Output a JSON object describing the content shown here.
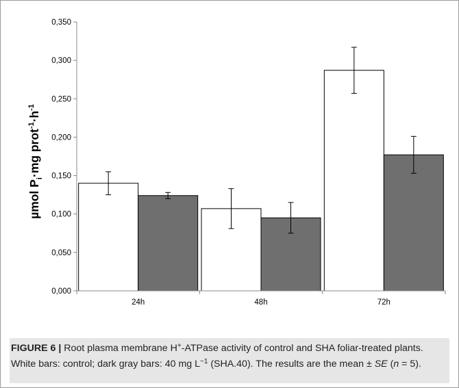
{
  "chart_data": {
    "type": "bar",
    "categories": [
      "24h",
      "48h",
      "72h"
    ],
    "series": [
      {
        "values": [
          0.14,
          0.107,
          0.287
        ],
        "errors": [
          0.015,
          0.026,
          0.03
        ],
        "color": "#ffffff"
      },
      {
        "values": [
          0.124,
          0.095,
          0.177
        ],
        "errors": [
          0.004,
          0.02,
          0.024
        ],
        "color": "#6f6f6f"
      }
    ],
    "ylim": [
      0,
      0.35
    ],
    "yticks": [
      "0,000",
      "0,050",
      "0,100",
      "0,150",
      "0,200",
      "0,250",
      "0,300",
      "0,350"
    ],
    "yticks_values": [
      0,
      0.05,
      0.1,
      0.15,
      0.2,
      0.25,
      0.3,
      0.35
    ],
    "ylabel": {
      "p1": "µmol P",
      "sub": "i",
      "p2": "·mg prot",
      "sup1": "-1",
      "p3": "·h",
      "sup2": "-1"
    },
    "grid": false,
    "legend": "none"
  },
  "caption": {
    "label": "FIGURE 6 |",
    "text1": " Root plasma membrane H",
    "sup1": "+",
    "text2": "-ATPase activity of control and SHA foliar-treated plants. White bars: control; dark gray bars: 40 mg L",
    "sup2": "−1",
    "text3": " (SHA.40). The results are the mean ± ",
    "se": "SE",
    "text4": " (",
    "n": "n",
    "text5": " = 5)."
  }
}
